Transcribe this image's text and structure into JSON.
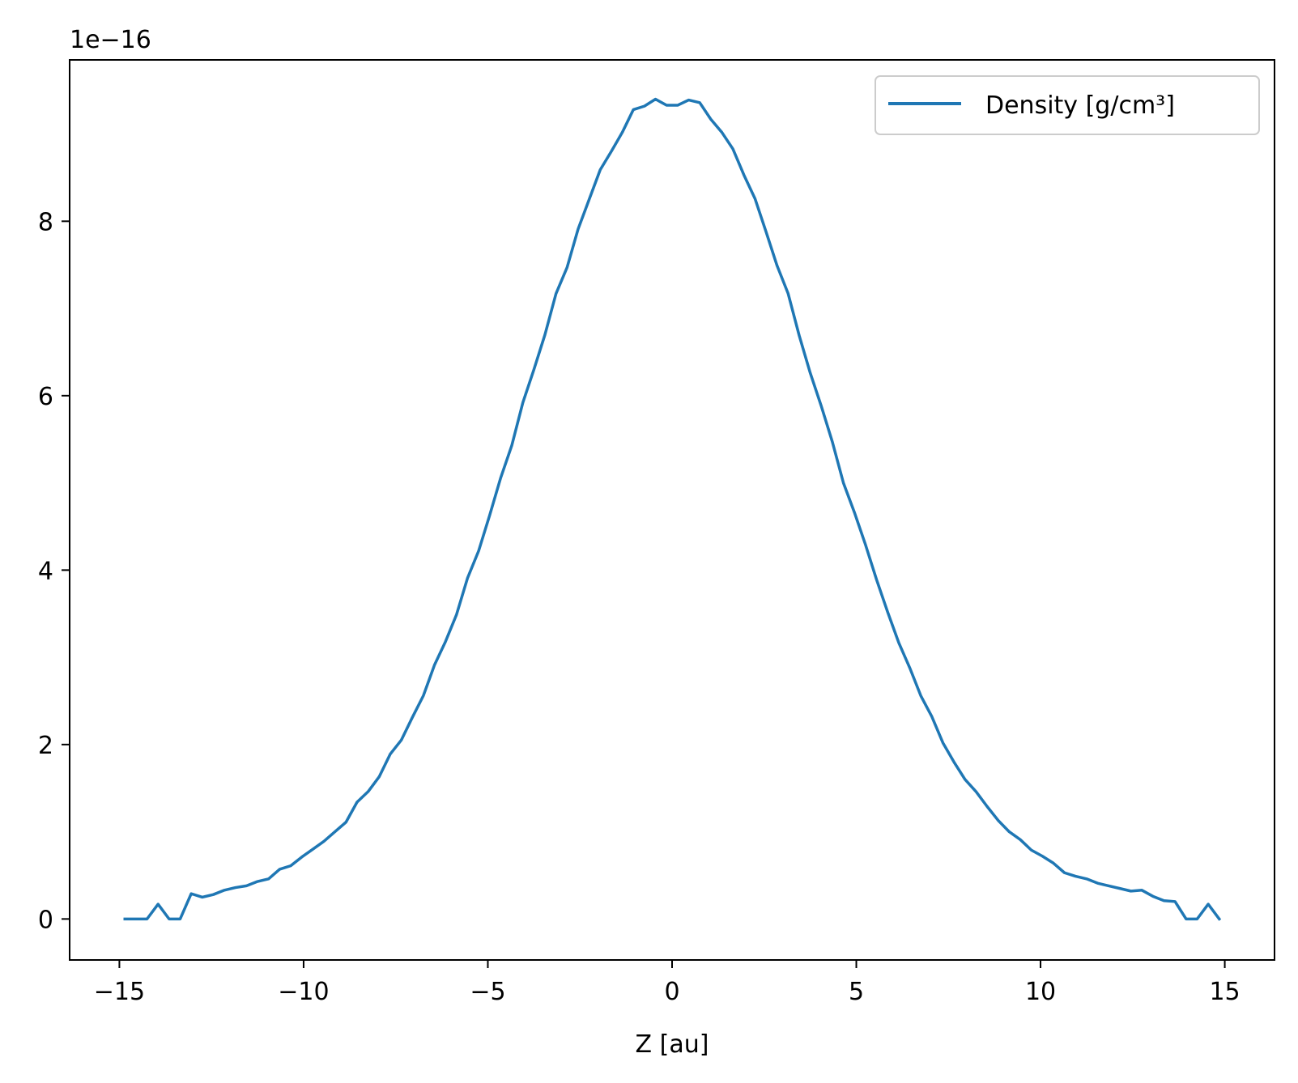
{
  "chart_data": {
    "type": "line",
    "title": "",
    "xlabel": "Z [au]",
    "ylabel": "",
    "y_offset_label": "1e−16",
    "xlim": [
      -16.35,
      16.35
    ],
    "ylim": [
      -0.47,
      9.85
    ],
    "x_ticks": [
      -15,
      -10,
      -5,
      0,
      5,
      10,
      15
    ],
    "x_tick_labels": [
      "−15",
      "−10",
      "−5",
      "0",
      "5",
      "10",
      "15"
    ],
    "y_ticks": [
      0,
      2,
      4,
      6,
      8
    ],
    "y_tick_labels": [
      "0",
      "2",
      "4",
      "6",
      "8"
    ],
    "grid": false,
    "legend_position": "upper-right",
    "series": [
      {
        "name": "Density [g/cm³]",
        "color": "#1f77b4",
        "x": [
          -14.85,
          -14.55,
          -14.25,
          -13.95,
          -13.65,
          -13.35,
          -13.05,
          -12.75,
          -12.45,
          -12.15,
          -11.85,
          -11.55,
          -11.25,
          -10.95,
          -10.65,
          -10.35,
          -10.05,
          -9.75,
          -9.45,
          -9.15,
          -8.85,
          -8.55,
          -8.25,
          -7.95,
          -7.65,
          -7.35,
          -7.05,
          -6.75,
          -6.45,
          -6.15,
          -5.85,
          -5.55,
          -5.25,
          -4.95,
          -4.65,
          -4.35,
          -4.05,
          -3.75,
          -3.45,
          -3.15,
          -2.85,
          -2.55,
          -2.25,
          -1.95,
          -1.65,
          -1.35,
          -1.05,
          -0.75,
          -0.45,
          -0.15,
          0.15,
          0.45,
          0.75,
          1.05,
          1.35,
          1.65,
          1.95,
          2.25,
          2.55,
          2.85,
          3.15,
          3.45,
          3.75,
          4.05,
          4.35,
          4.65,
          4.95,
          5.25,
          5.55,
          5.85,
          6.15,
          6.45,
          6.75,
          7.05,
          7.35,
          7.65,
          7.95,
          8.25,
          8.55,
          8.85,
          9.15,
          9.45,
          9.75,
          10.05,
          10.35,
          10.65,
          10.95,
          11.25,
          11.55,
          11.85,
          12.15,
          12.45,
          12.75,
          13.05,
          13.35,
          13.65,
          13.95,
          14.25,
          14.55,
          14.85
        ],
        "values": [
          0.0,
          0.0,
          0.0,
          0.17,
          0.0,
          0.0,
          0.29,
          0.25,
          0.28,
          0.33,
          0.36,
          0.38,
          0.43,
          0.46,
          0.57,
          0.61,
          0.71,
          0.8,
          0.89,
          1.0,
          1.11,
          1.34,
          1.46,
          1.63,
          1.89,
          2.05,
          2.31,
          2.56,
          2.91,
          3.18,
          3.49,
          3.91,
          4.22,
          4.63,
          5.06,
          5.43,
          5.92,
          6.3,
          6.7,
          7.17,
          7.47,
          7.91,
          8.25,
          8.59,
          8.8,
          9.02,
          9.28,
          9.32,
          9.4,
          9.33,
          9.33,
          9.39,
          9.36,
          9.17,
          9.02,
          8.83,
          8.53,
          8.26,
          7.88,
          7.49,
          7.17,
          6.69,
          6.26,
          5.88,
          5.47,
          5.0,
          4.66,
          4.29,
          3.89,
          3.52,
          3.17,
          2.88,
          2.56,
          2.32,
          2.02,
          1.8,
          1.6,
          1.46,
          1.29,
          1.13,
          1.0,
          0.91,
          0.79,
          0.72,
          0.64,
          0.53,
          0.49,
          0.46,
          0.41,
          0.38,
          0.35,
          0.32,
          0.33,
          0.26,
          0.21,
          0.2,
          0.0,
          0.0,
          0.17,
          0.0
        ]
      }
    ]
  }
}
